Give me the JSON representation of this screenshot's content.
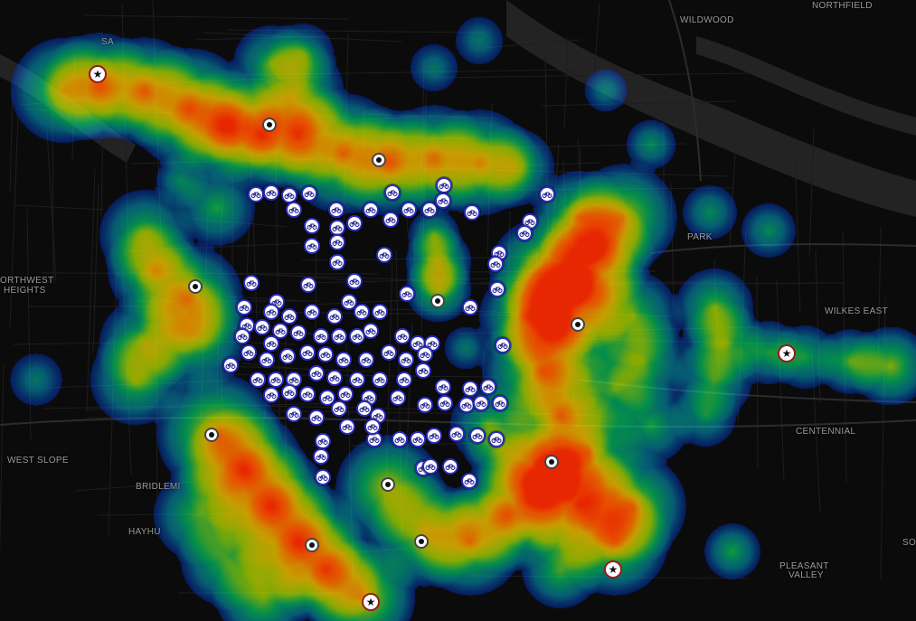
{
  "map": {
    "labels": [
      {
        "id": "northfield",
        "text": "NORTHFIELD"
      },
      {
        "id": "wildwood",
        "text": "WILDWOOD"
      },
      {
        "id": "northwest-1",
        "text": "ORTHWEST"
      },
      {
        "id": "northwest-2",
        "text": "HEIGHTS"
      },
      {
        "id": "wilkes-east",
        "text": "WILKES EAST"
      },
      {
        "id": "centennial",
        "text": "CENTENNIAL"
      },
      {
        "id": "west-slope",
        "text": "WEST SLOPE"
      },
      {
        "id": "bridlemile",
        "text": "BRIDLEMI"
      },
      {
        "id": "hayhu",
        "text": "HAYHU"
      },
      {
        "id": "pleasant-1",
        "text": "PLEASANT"
      },
      {
        "id": "pleasant-2",
        "text": "VALLEY"
      },
      {
        "id": "park",
        "text": "Park"
      },
      {
        "id": "sa",
        "text": "SA"
      },
      {
        "id": "so",
        "text": "SO"
      }
    ],
    "colors": {
      "background": "#0b0b0b",
      "road": "#1f1f1f",
      "river": "#2a2a2a",
      "label": "#9a9a9a",
      "station_border": "#2b2bbd",
      "star_border": "#9a1a1a"
    },
    "heatmap_gradient": [
      "#0000ff",
      "#00c8ff",
      "#00ff80",
      "#c8ff00",
      "#ffcc00",
      "#ff6600",
      "#ff2a00"
    ],
    "marker_types": {
      "station": "bike-share-station-icon",
      "dot": "location-dot-icon",
      "star": "star-location-icon"
    }
  }
}
